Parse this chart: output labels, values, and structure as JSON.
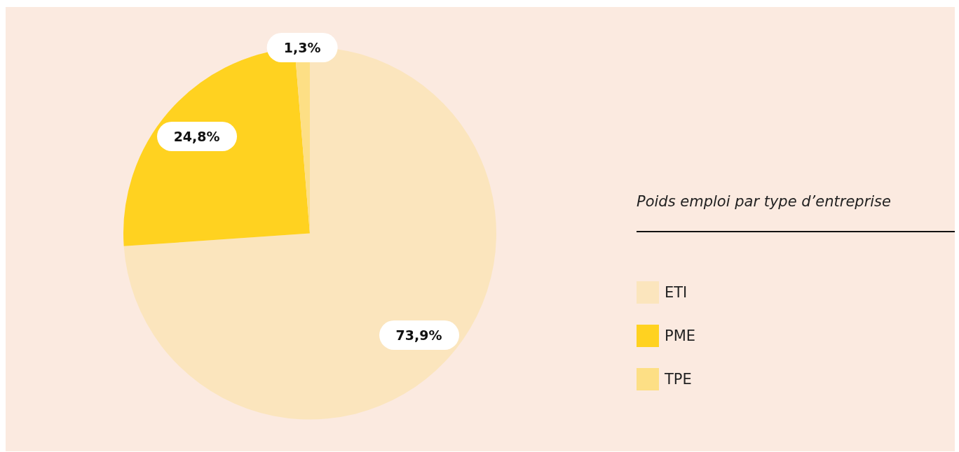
{
  "chart_data": {
    "type": "pie",
    "legend_title": "Poids emploi par type d’entreprise",
    "legend": "right",
    "categories": [
      "ETI",
      "PME",
      "TPE"
    ],
    "values": [
      73.9,
      24.8,
      1.3
    ],
    "colors": [
      "#fbe5bd",
      "#ffd220",
      "#fddf85"
    ],
    "value_labels": [
      "73,9%",
      "24,8%",
      "1,3%"
    ]
  }
}
